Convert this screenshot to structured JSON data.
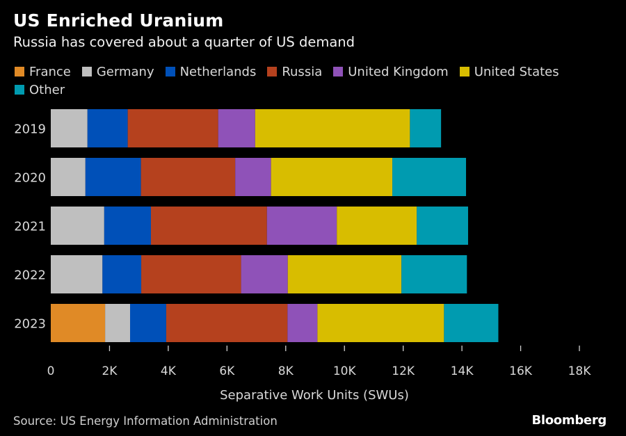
{
  "header": {
    "title": "US Enriched Uranium",
    "subtitle": "Russia has covered about a quarter of US demand"
  },
  "footer": {
    "source": "Source: US Energy Information Administration",
    "brand": "Bloomberg"
  },
  "chart_data": {
    "type": "bar",
    "orientation": "horizontal",
    "stacked": true,
    "title": "US Enriched Uranium",
    "subtitle": "Russia has covered about a quarter of US demand",
    "xlabel": "Separative Work Units (SWUs)",
    "ylabel": "",
    "xlim": [
      0,
      18000
    ],
    "xticks": [
      0,
      2000,
      4000,
      6000,
      8000,
      10000,
      12000,
      14000,
      16000,
      18000
    ],
    "xtick_labels": [
      "0",
      "2K",
      "4K",
      "6K",
      "8K",
      "10K",
      "12K",
      "14K",
      "16K",
      "18K"
    ],
    "grid": false,
    "legend_position": "top-left",
    "categories": [
      "2019",
      "2020",
      "2021",
      "2022",
      "2023"
    ],
    "series": [
      {
        "name": "France",
        "color": "#e08a26",
        "values": [
          0,
          0,
          0,
          0,
          1850
        ]
      },
      {
        "name": "Germany",
        "color": "#bfbfbf",
        "values": [
          1250,
          1180,
          1820,
          1760,
          850
        ]
      },
      {
        "name": "Netherlands",
        "color": "#0050b8",
        "values": [
          1370,
          1890,
          1590,
          1320,
          1230
        ]
      },
      {
        "name": "Russia",
        "color": "#b5411e",
        "values": [
          3080,
          3210,
          3950,
          3400,
          4130
        ]
      },
      {
        "name": "United Kingdom",
        "color": "#8f52b8",
        "values": [
          1260,
          1220,
          2380,
          1590,
          1020
        ]
      },
      {
        "name": "United States",
        "color": "#d8bd00",
        "values": [
          5270,
          4130,
          2720,
          3870,
          4310
        ]
      },
      {
        "name": "Other",
        "color": "#009bb0",
        "values": [
          1060,
          2510,
          1750,
          2230,
          1850
        ]
      }
    ],
    "source": "Source: US Energy Information Administration"
  }
}
